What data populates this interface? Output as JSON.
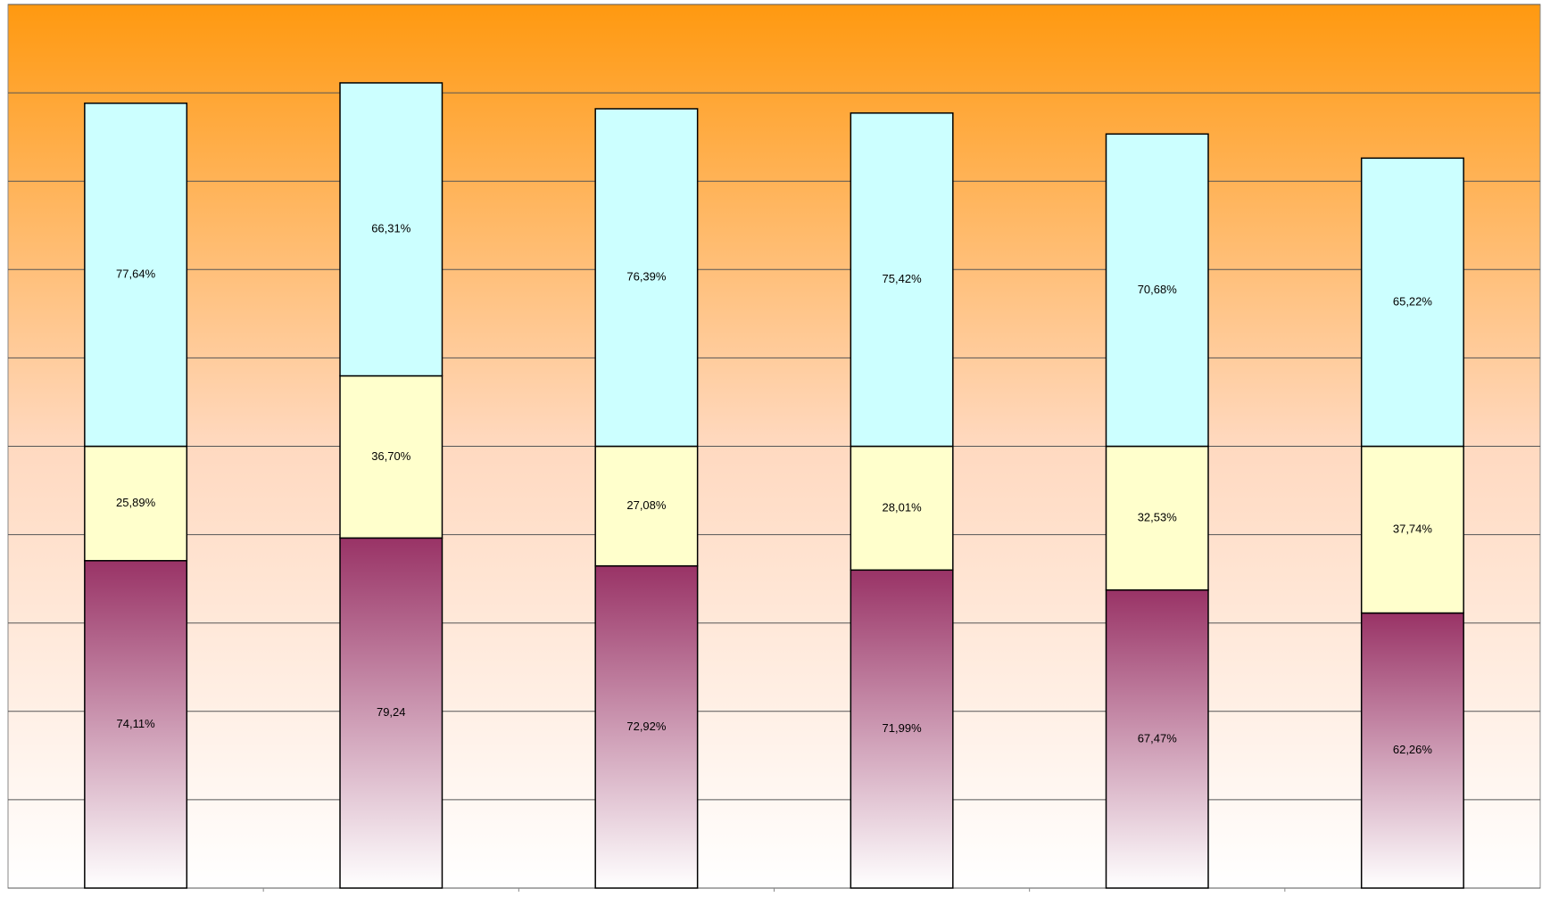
{
  "chart_data": {
    "type": "stacked_bar",
    "categories": [
      null,
      null,
      null,
      null,
      null,
      null
    ],
    "series": [
      {
        "color": "#993366",
        "gradient": true,
        "values": [
          74.11,
          79.24,
          72.92,
          71.99,
          67.47,
          62.26
        ],
        "value_labels": [
          "74,11%",
          "79,24",
          "72,92%",
          "71,99%",
          "67,47%",
          "62,26%"
        ]
      },
      {
        "color": "#ffffcc",
        "values": [
          25.89,
          36.7,
          27.08,
          28.01,
          32.53,
          37.74
        ],
        "value_labels": [
          "25,89%",
          "36,70%",
          "27,08%",
          "28,01%",
          "32,53%",
          "37,74%"
        ]
      },
      {
        "color": "#ccffff",
        "values": [
          77.64,
          66.31,
          76.39,
          75.42,
          70.68,
          65.22
        ],
        "value_labels": [
          "77,64%",
          "66,31%",
          "76,39%",
          "75,42%",
          "70,68%",
          "65,22%"
        ]
      }
    ],
    "ylim": [
      0,
      200
    ],
    "yticks": [
      0,
      20,
      40,
      60,
      80,
      100,
      120,
      140,
      160,
      180,
      200
    ],
    "grid": true
  }
}
